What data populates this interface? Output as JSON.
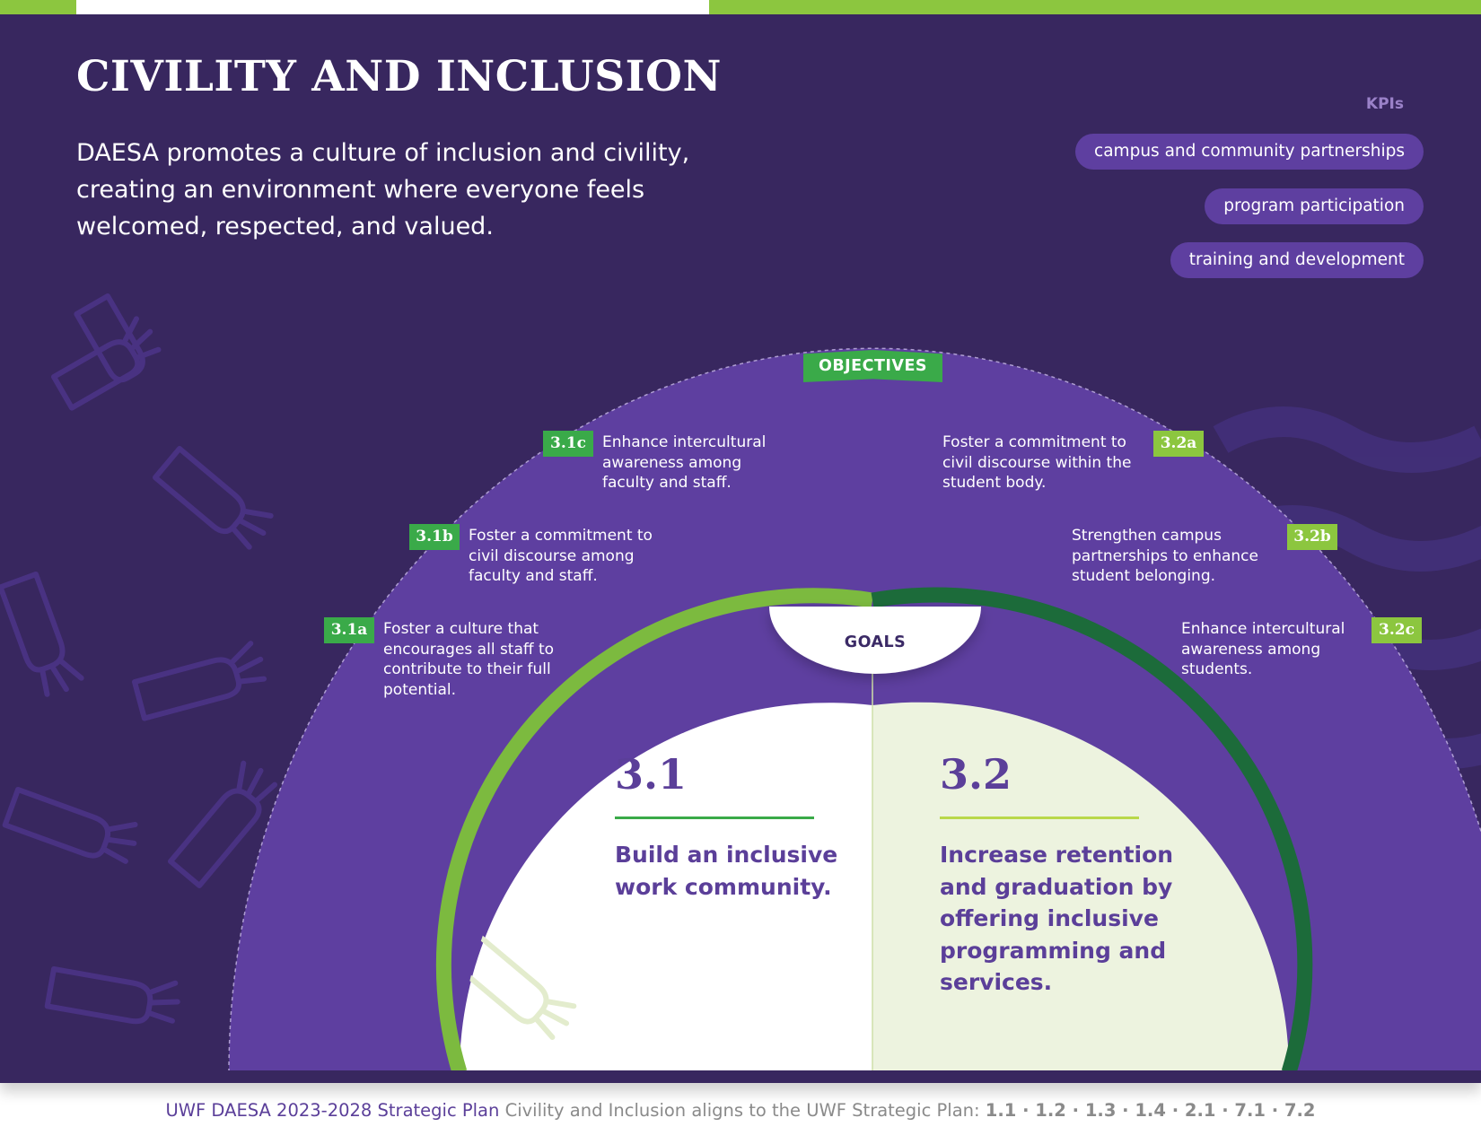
{
  "header": {
    "title": "CIVILITY AND INCLUSION",
    "intro": "DAESA promotes a culture of inclusion and civility, creating an environment where everyone feels welcomed, respected, and valued."
  },
  "kpis": {
    "heading": "KPIs",
    "items": [
      "campus and community partnerships",
      "program participation",
      "training and development"
    ]
  },
  "objectives": {
    "label": "OBJECTIVES",
    "items": [
      {
        "id": "3.1c",
        "text": "Enhance intercultural awareness among faculty and staff."
      },
      {
        "id": "3.1b",
        "text": "Foster a commitment to civil discourse among faculty and staff."
      },
      {
        "id": "3.1a",
        "text": "Foster a culture that encourages all staff to contribute to their full potential."
      },
      {
        "id": "3.2a",
        "text": "Foster a commitment to civil discourse within the student body."
      },
      {
        "id": "3.2b",
        "text": "Strengthen campus partnerships to enhance student belonging."
      },
      {
        "id": "3.2c",
        "text": "Enhance intercultural awareness among students."
      }
    ]
  },
  "goals": {
    "label": "GOALS",
    "items": [
      {
        "number": "3.1",
        "text": "Build an inclusive work community."
      },
      {
        "number": "3.2",
        "text": "Increase retention and graduation by offering inclusive programming and services."
      }
    ]
  },
  "footer": {
    "plan_name": "UWF DAESA 2023-2028 Strategic Plan",
    "alignment": "Civility and Inclusion aligns to the UWF Strategic Plan:",
    "plan_numbers": "1.1 · 1.2 · 1.3 · 1.4 · 2.1 · 7.1 · 7.2"
  },
  "colors": {
    "background": "#38275f",
    "arch": "#5e3fa0",
    "green_dark": "#3aaa49",
    "green_light": "#8cc63f",
    "goal_left": "#ffffff",
    "goal_right": "#edf3df",
    "goal_text": "#5b3f99"
  },
  "icons": [
    "hands-pattern-icon",
    "wave-pattern-icon"
  ]
}
